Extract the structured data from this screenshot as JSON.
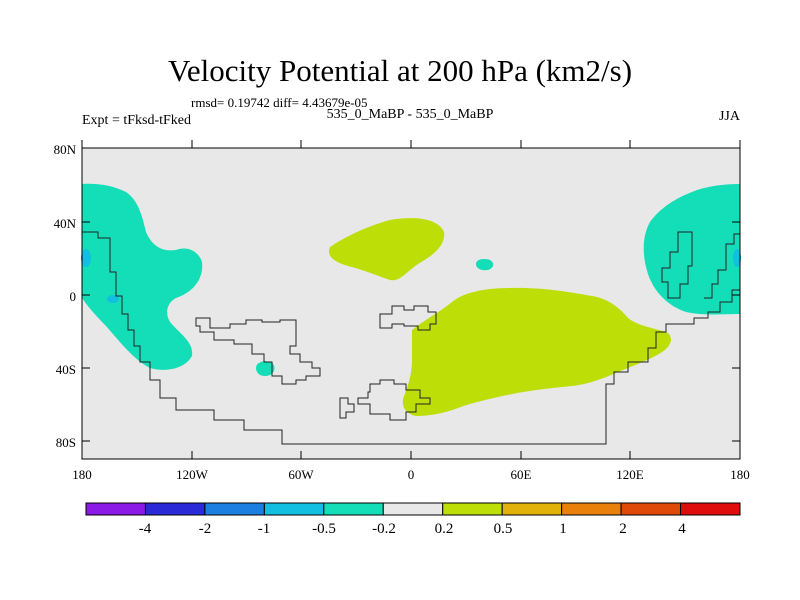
{
  "title": "Velocity Potential at 200 hPa (km2/s)",
  "stats": "rmsd= 0.19742 diff= 4.43679e-05",
  "experiment": "Expt = tFksd-tFked",
  "subtitle": "535_0_MaBP - 535_0_MaBP",
  "season": "JJA",
  "y_axis": [
    "80N",
    "40N",
    "0",
    "40S",
    "80S"
  ],
  "x_axis": [
    "180",
    "120W",
    "60W",
    "0",
    "60E",
    "120E",
    "180"
  ],
  "colorbar": {
    "colors": [
      "#8c1ae6",
      "#2a2ad6",
      "#1a7fe0",
      "#12bfe0",
      "#14deb8",
      "#e8e8e8",
      "#bede08",
      "#e0b20a",
      "#e8800a",
      "#e04a08",
      "#e00d0d"
    ],
    "labels": [
      "-4",
      "-2",
      "-1",
      "-0.5",
      "-0.2",
      "0.2",
      "0.5",
      "1",
      "2",
      "4"
    ]
  },
  "colors": {
    "background": "#e8e8e8",
    "negative_fill": "#14deb8",
    "negative_core": "#12bfe0",
    "positive_fill": "#bede08"
  }
}
